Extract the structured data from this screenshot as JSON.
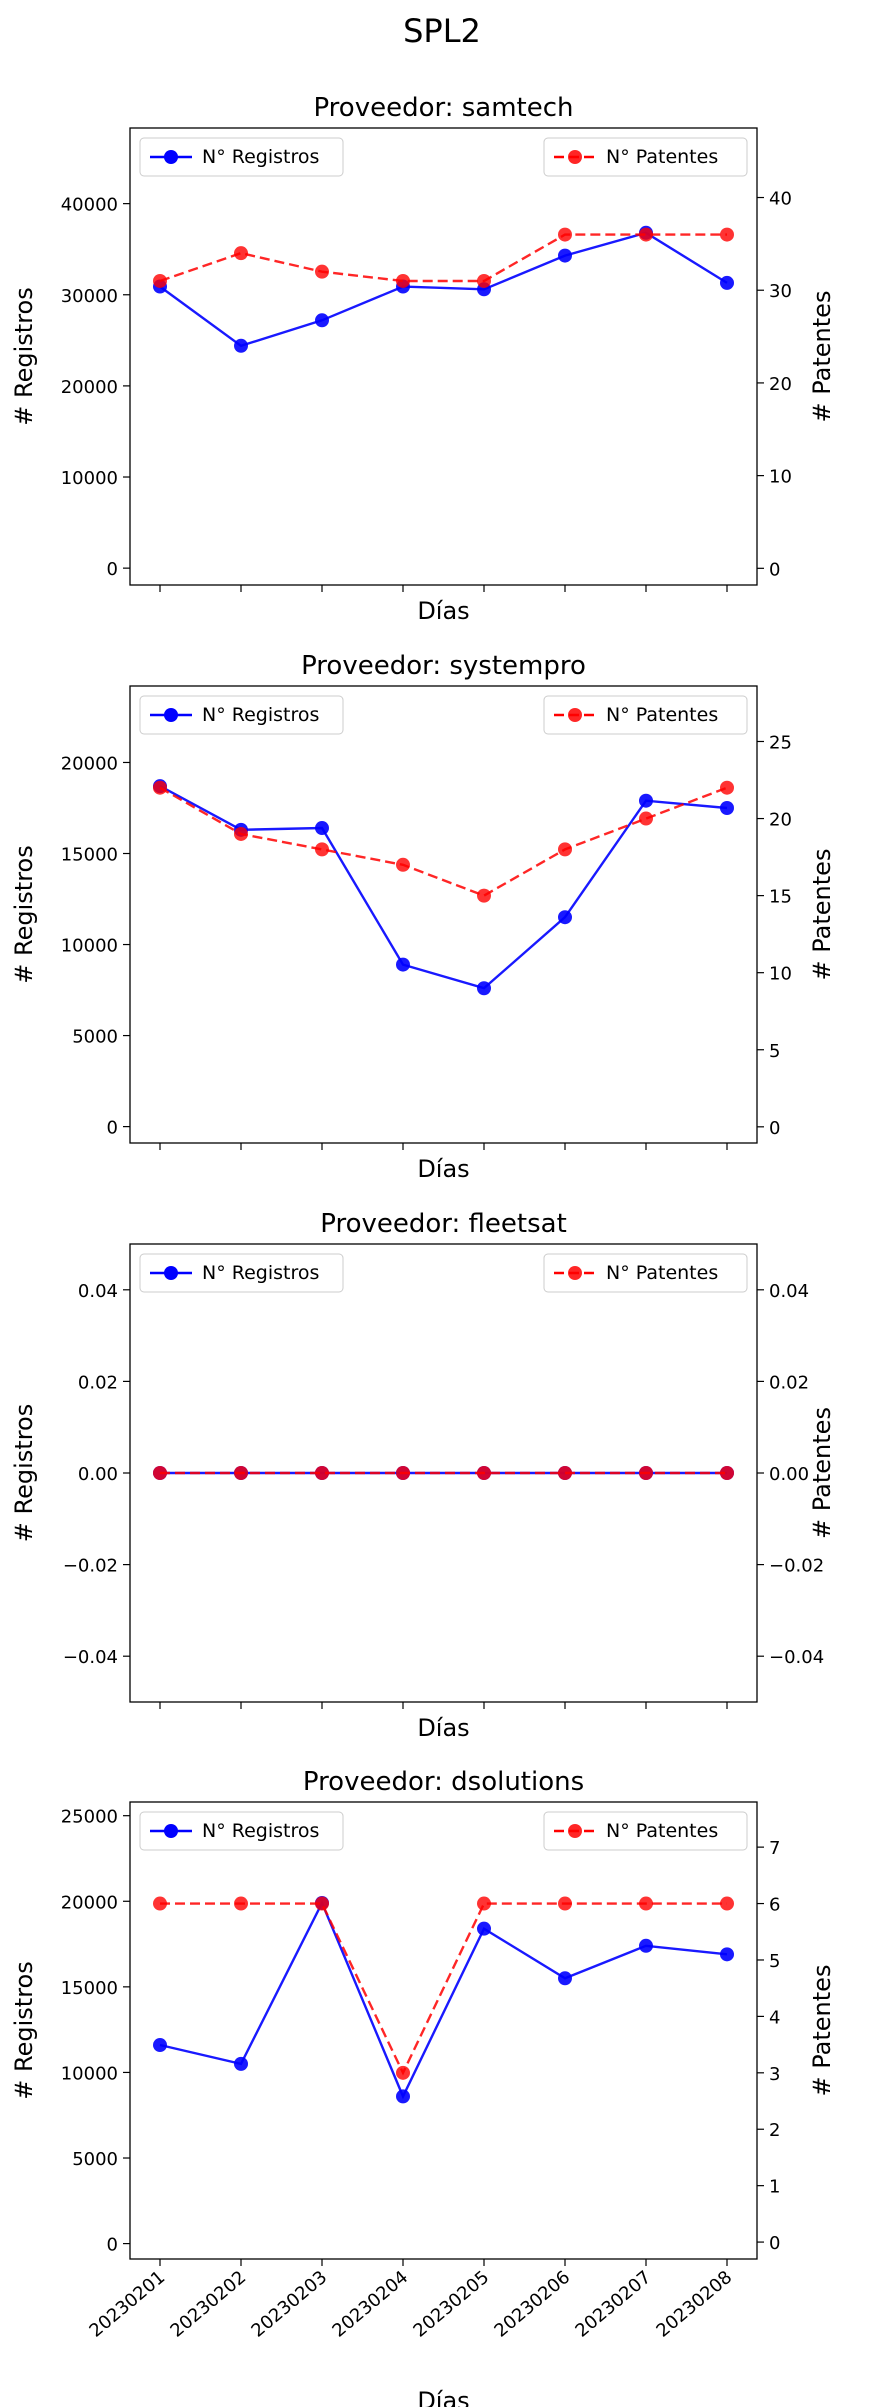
{
  "figure": {
    "title": "SPL2",
    "legend": {
      "left_label": "N° Registros",
      "right_label": "N° Patentes",
      "left_placement": "upper-left",
      "right_placement": "upper-right"
    }
  },
  "colors": {
    "registros": "#0000ff",
    "patentes": "#ff0000",
    "axis": "#000000",
    "background": "#ffffff"
  },
  "chart_data": [
    {
      "type": "line",
      "title": "Proveedor: samtech",
      "xlabel": "Días",
      "ylabel_left": "# Registros",
      "ylabel_right": "# Patentes",
      "categories": [
        "20230201",
        "20230202",
        "20230203",
        "20230204",
        "20230205",
        "20230206",
        "20230207",
        "20230208"
      ],
      "show_x_tick_labels": false,
      "ylim_left": [
        -1850,
        48300
      ],
      "ylim_right": [
        -1.8,
        47.5
      ],
      "yticks_left": [
        {
          "v": 0,
          "label": "0"
        },
        {
          "v": 10000,
          "label": "10000"
        },
        {
          "v": 20000,
          "label": "20000"
        },
        {
          "v": 30000,
          "label": "30000"
        },
        {
          "v": 40000,
          "label": "40000"
        }
      ],
      "yticks_right": [
        {
          "v": 0,
          "label": "0"
        },
        {
          "v": 10,
          "label": "10"
        },
        {
          "v": 20,
          "label": "20"
        },
        {
          "v": 30,
          "label": "30"
        },
        {
          "v": 40,
          "label": "40"
        }
      ],
      "series": [
        {
          "name": "N° Registros",
          "axis": "left",
          "style": "solid",
          "values": [
            30900,
            24400,
            27200,
            30900,
            30600,
            34300,
            36800,
            31300
          ]
        },
        {
          "name": "N° Patentes",
          "axis": "right",
          "style": "dashed",
          "values": [
            31,
            34,
            32,
            31,
            31,
            36,
            36,
            36
          ]
        }
      ]
    },
    {
      "type": "line",
      "title": "Proveedor: systempro",
      "xlabel": "Días",
      "ylabel_left": "# Registros",
      "ylabel_right": "# Patentes",
      "categories": [
        "20230201",
        "20230202",
        "20230203",
        "20230204",
        "20230205",
        "20230206",
        "20230207",
        "20230208"
      ],
      "show_x_tick_labels": false,
      "ylim_left": [
        -900,
        24200
      ],
      "ylim_right": [
        -1.05,
        28.6
      ],
      "yticks_left": [
        {
          "v": 0,
          "label": "0"
        },
        {
          "v": 5000,
          "label": "5000"
        },
        {
          "v": 10000,
          "label": "10000"
        },
        {
          "v": 15000,
          "label": "15000"
        },
        {
          "v": 20000,
          "label": "20000"
        }
      ],
      "yticks_right": [
        {
          "v": 0,
          "label": "0"
        },
        {
          "v": 5,
          "label": "5"
        },
        {
          "v": 10,
          "label": "10"
        },
        {
          "v": 15,
          "label": "15"
        },
        {
          "v": 20,
          "label": "20"
        },
        {
          "v": 25,
          "label": "25"
        }
      ],
      "series": [
        {
          "name": "N° Registros",
          "axis": "left",
          "style": "solid",
          "values": [
            18700,
            16300,
            16400,
            8900,
            7600,
            11500,
            17900,
            17500
          ]
        },
        {
          "name": "N° Patentes",
          "axis": "right",
          "style": "dashed",
          "values": [
            22,
            19,
            18,
            17,
            15,
            18,
            20,
            22
          ]
        }
      ]
    },
    {
      "type": "line",
      "title": "Proveedor: fleetsat",
      "xlabel": "Días",
      "ylabel_left": "# Registros",
      "ylabel_right": "# Patentes",
      "categories": [
        "20230201",
        "20230202",
        "20230203",
        "20230204",
        "20230205",
        "20230206",
        "20230207",
        "20230208"
      ],
      "show_x_tick_labels": false,
      "ylim_left": [
        -0.05,
        0.05
      ],
      "ylim_right": [
        -0.05,
        0.05
      ],
      "yticks_left": [
        {
          "v": -0.04,
          "label": "−0.04"
        },
        {
          "v": -0.02,
          "label": "−0.02"
        },
        {
          "v": 0,
          "label": "0.00"
        },
        {
          "v": 0.02,
          "label": "0.02"
        },
        {
          "v": 0.04,
          "label": "0.04"
        }
      ],
      "yticks_right": [
        {
          "v": -0.04,
          "label": "−0.04"
        },
        {
          "v": -0.02,
          "label": "−0.02"
        },
        {
          "v": 0,
          "label": "0.00"
        },
        {
          "v": 0.02,
          "label": "0.02"
        },
        {
          "v": 0.04,
          "label": "0.04"
        }
      ],
      "series": [
        {
          "name": "N° Registros",
          "axis": "left",
          "style": "solid",
          "values": [
            0,
            0,
            0,
            0,
            0,
            0,
            0,
            0
          ]
        },
        {
          "name": "N° Patentes",
          "axis": "right",
          "style": "dashed",
          "values": [
            0,
            0,
            0,
            0,
            0,
            0,
            0,
            0
          ]
        }
      ]
    },
    {
      "type": "line",
      "title": "Proveedor: dsolutions",
      "xlabel": "Días",
      "ylabel_left": "# Registros",
      "ylabel_right": "# Patentes",
      "categories": [
        "20230201",
        "20230202",
        "20230203",
        "20230204",
        "20230205",
        "20230206",
        "20230207",
        "20230208"
      ],
      "show_x_tick_labels": true,
      "ylim_left": [
        -900,
        25800
      ],
      "ylim_right": [
        -0.3,
        7.8
      ],
      "yticks_left": [
        {
          "v": 0,
          "label": "0"
        },
        {
          "v": 5000,
          "label": "5000"
        },
        {
          "v": 10000,
          "label": "10000"
        },
        {
          "v": 15000,
          "label": "15000"
        },
        {
          "v": 20000,
          "label": "20000"
        },
        {
          "v": 25000,
          "label": "25000"
        }
      ],
      "yticks_right": [
        {
          "v": 0,
          "label": "0"
        },
        {
          "v": 1,
          "label": "1"
        },
        {
          "v": 2,
          "label": "2"
        },
        {
          "v": 3,
          "label": "3"
        },
        {
          "v": 4,
          "label": "4"
        },
        {
          "v": 5,
          "label": "5"
        },
        {
          "v": 6,
          "label": "6"
        },
        {
          "v": 7,
          "label": "7"
        }
      ],
      "series": [
        {
          "name": "N° Registros",
          "axis": "left",
          "style": "solid",
          "values": [
            11600,
            10500,
            19900,
            8600,
            18400,
            15500,
            17400,
            16900
          ]
        },
        {
          "name": "N° Patentes",
          "axis": "right",
          "style": "dashed",
          "values": [
            6,
            6,
            6,
            3,
            6,
            6,
            6,
            6
          ]
        }
      ]
    }
  ]
}
